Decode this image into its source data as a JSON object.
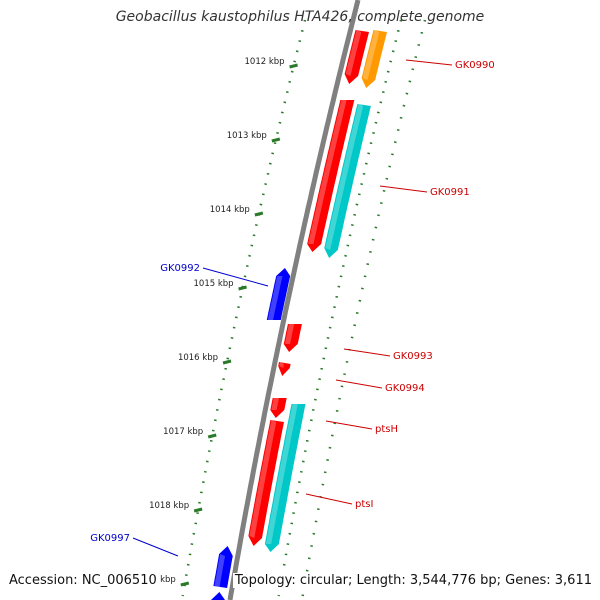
{
  "title": "Geobacillus kaustophilus HTA426, complete genome",
  "footer": {
    "accession": "Accession: NC_006510",
    "topology": "Topology: circular; Length: 3,544,776 bp; Genes: 3,611"
  },
  "colors": {
    "backbone": "#808080",
    "forward_gene": "#ff0000",
    "reverse_gene": "#0000ff",
    "forward_feature": "#00c8c8",
    "other_feature": "#ff9900",
    "tick": "#2a7a2a",
    "label_forward": "#cc0000",
    "label_reverse": "#0000cc"
  },
  "scale_ticks": [
    "1012 kbp",
    "1013 kbp",
    "1014 kbp",
    "1015 kbp",
    "1016 kbp",
    "1017 kbp",
    "1018 kbp",
    "9 kbp"
  ],
  "gene_labels": [
    {
      "text": "GK0990",
      "strand": "forward"
    },
    {
      "text": "GK0991",
      "strand": "forward"
    },
    {
      "text": "GK0992",
      "strand": "reverse"
    },
    {
      "text": "GK0993",
      "strand": "forward"
    },
    {
      "text": "GK0994",
      "strand": "forward"
    },
    {
      "text": "ptsH",
      "strand": "forward"
    },
    {
      "text": "ptsI",
      "strand": "forward"
    },
    {
      "text": "GK0997",
      "strand": "reverse"
    }
  ]
}
